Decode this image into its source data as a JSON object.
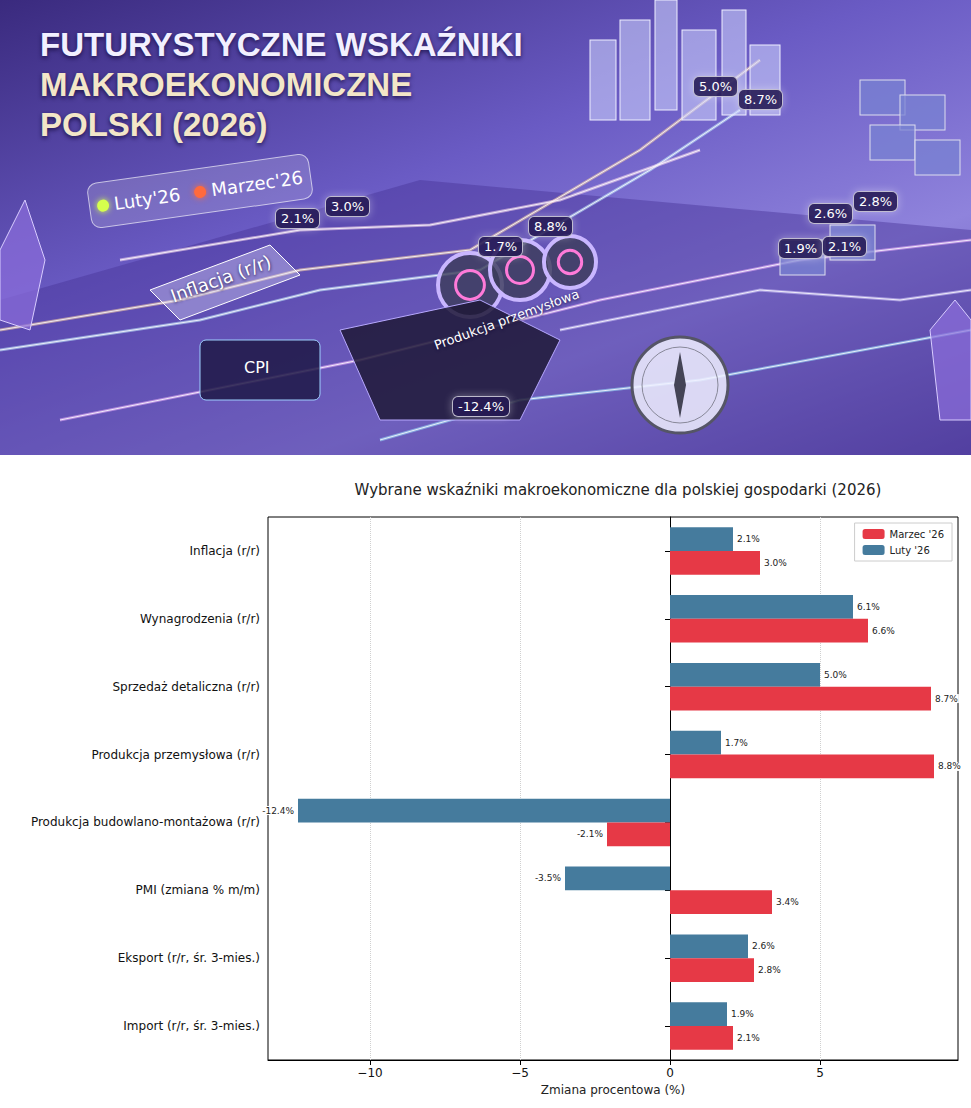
{
  "banner": {
    "title": [
      "FUTURYSTYCZNE WSKAŹNIKI",
      "MAKROEKONOMICZNE",
      "POLSKI (2026)"
    ],
    "legend": [
      "Luty'26",
      "Marzec'26"
    ],
    "labels": {
      "inflation": "Inflacja (r/r)",
      "cpi": "CPI",
      "industry": "Produkcja przemysłowa"
    },
    "badges": {
      "inflation": [
        "2.1%",
        "3.0%"
      ],
      "industry": [
        "1.7%",
        "8.8%"
      ],
      "construction": [
        "-12.4%"
      ],
      "retail": [
        "5.0%",
        "8.7%"
      ],
      "exports": [
        "2.6%",
        "2.8%"
      ],
      "imports": [
        "1.9%",
        "2.1%"
      ]
    }
  },
  "chart_data": {
    "type": "bar",
    "orientation": "horizontal",
    "title": "Wybrane wskaźniki makroekonomiczne dla polskiej gospodarki (2026)",
    "x_label": "Zmiana procentowa (%)",
    "categories": [
      "Inflacja (r/r)",
      "Wynagrodzenia (r/r)",
      "Sprzedaż detaliczna (r/r)",
      "Produkcja przemysłowa (r/r)",
      "Produkcja budowlano-montażowa (r/r)",
      "PMI (zmiana % m/m)",
      "Eksport (r/r, śr. 3-mies.)",
      "Import (r/r, śr. 3-mies.)"
    ],
    "series": [
      {
        "name": "Luty '26",
        "color": "#457b9d",
        "values": [
          2.1,
          6.1,
          5.0,
          1.7,
          -12.4,
          -3.5,
          2.6,
          1.9
        ],
        "value_labels": [
          "2.1%",
          "6.1%",
          "5.0%",
          "1.7%",
          "-12.4%",
          "-3.5%",
          "2.6%",
          "1.9%"
        ]
      },
      {
        "name": "Marzec '26",
        "color": "#e63946",
        "values": [
          3.0,
          6.6,
          8.7,
          8.8,
          -2.1,
          3.4,
          2.8,
          2.1
        ],
        "value_labels": [
          "3.0%",
          "6.6%",
          "8.7%",
          "8.8%",
          "-2.1%",
          "3.4%",
          "2.8%",
          "2.1%"
        ]
      }
    ],
    "xlim": [
      -13.4,
      9.6
    ],
    "xticks": [
      {
        "value": -10,
        "label": "−10"
      },
      {
        "value": -5,
        "label": "−5"
      },
      0,
      5
    ],
    "grid": true,
    "legend": "upper right",
    "data_labels": true
  }
}
